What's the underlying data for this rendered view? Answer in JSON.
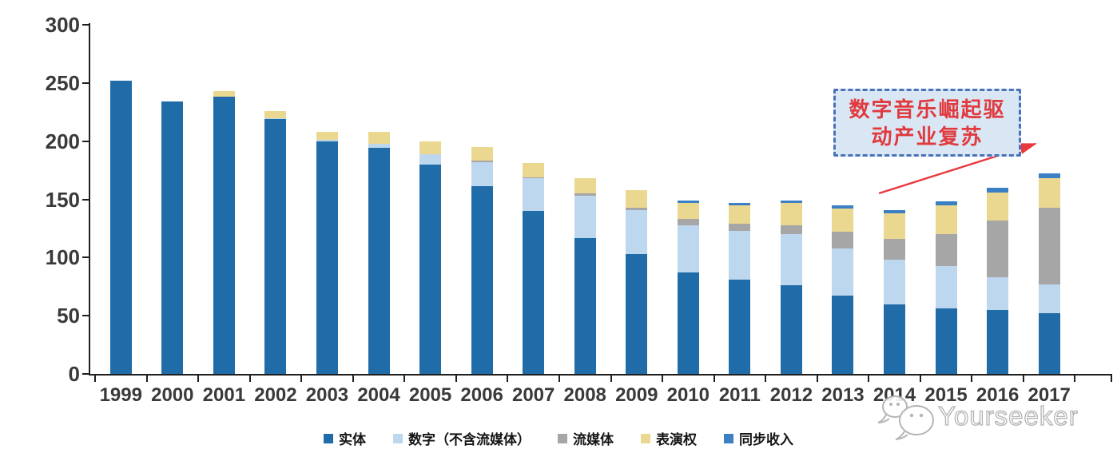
{
  "chart_data": {
    "type": "bar",
    "stacked": true,
    "title": "",
    "x": [
      "1999",
      "2000",
      "2001",
      "2002",
      "2003",
      "2004",
      "2005",
      "2006",
      "2007",
      "2008",
      "2009",
      "2010",
      "2011",
      "2012",
      "2013",
      "2014",
      "2015",
      "2016",
      "2017"
    ],
    "series": [
      {
        "name": "实体",
        "color": "#1F6CA8",
        "values": [
          252,
          234,
          238,
          219,
          200,
          194,
          180,
          161,
          140,
          117,
          103,
          87,
          81,
          76,
          67,
          60,
          56,
          55,
          52
        ]
      },
      {
        "name": "数字（不含流媒体）",
        "color": "#BDD7EE",
        "values": [
          0,
          0,
          0,
          1,
          1,
          4,
          9,
          21,
          28,
          36,
          38,
          41,
          42,
          44,
          41,
          38,
          37,
          28,
          25
        ]
      },
      {
        "name": "流媒体",
        "color": "#A6A6A6",
        "values": [
          0,
          0,
          0,
          0,
          0,
          0,
          0,
          1,
          1,
          2,
          2,
          5,
          6,
          8,
          14,
          18,
          27,
          49,
          66
        ]
      },
      {
        "name": "表演权",
        "color": "#EBD890",
        "values": [
          0,
          0,
          5,
          6,
          7,
          10,
          11,
          12,
          12,
          13,
          15,
          14,
          16,
          19,
          20,
          22,
          25,
          24,
          25
        ]
      },
      {
        "name": "同步收入",
        "color": "#3C80C4",
        "values": [
          0,
          0,
          0,
          0,
          0,
          0,
          0,
          0,
          0,
          0,
          0,
          2,
          2,
          2,
          3,
          3,
          3,
          4,
          4
        ]
      }
    ],
    "ylim": [
      0,
      300
    ],
    "yticks": [
      0,
      50,
      100,
      150,
      200,
      250,
      300
    ],
    "grid": false,
    "legend_position": "bottom"
  },
  "annotation": {
    "line1": "数字音乐崛起驱",
    "line2": "动产业复苏",
    "text_color": "#E03A3E",
    "box_fill": "#D9E7F5",
    "box_border": "#4A72B8",
    "arrow_color": "#E8383D"
  },
  "watermark": {
    "text": "Yourseeker",
    "logo": "speech-bubble-icon"
  }
}
